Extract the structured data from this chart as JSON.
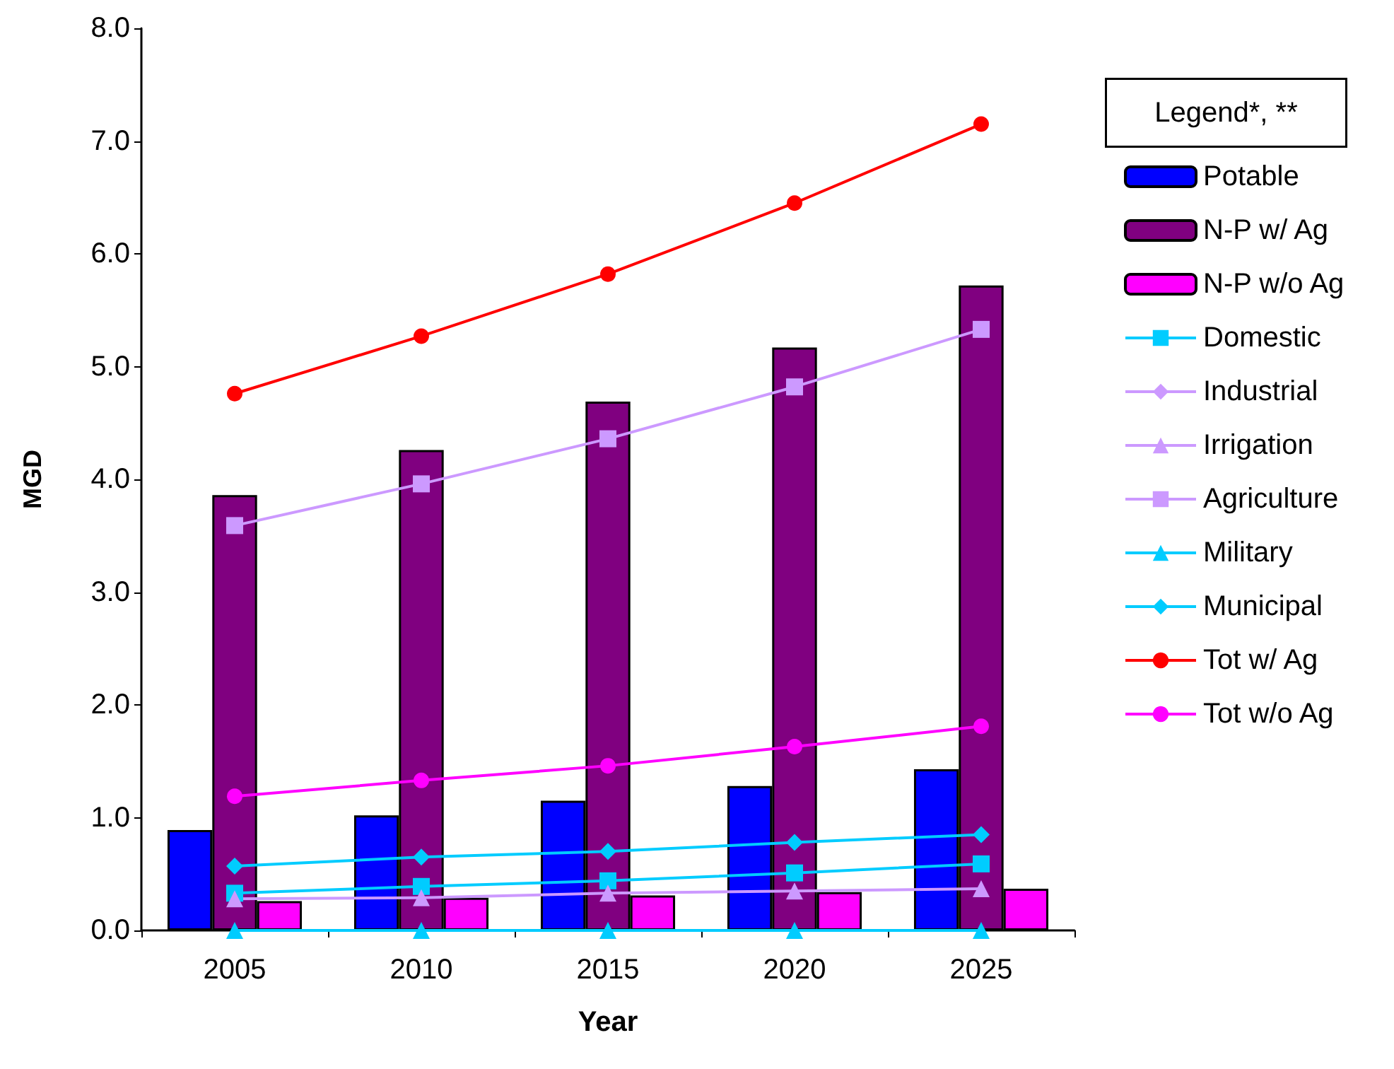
{
  "chart_data": {
    "type": "bar",
    "xlabel": "Year",
    "ylabel": "MGD",
    "legend_title": "Legend*, **",
    "categories": [
      "2005",
      "2010",
      "2015",
      "2020",
      "2025"
    ],
    "ylim": [
      0,
      8
    ],
    "yticks": [
      {
        "value": 0,
        "label": "0.0"
      },
      {
        "value": 1,
        "label": "1.0"
      },
      {
        "value": 2,
        "label": "2.0"
      },
      {
        "value": 3,
        "label": "3.0"
      },
      {
        "value": 4,
        "label": "4.0"
      },
      {
        "value": 5,
        "label": "5.0"
      },
      {
        "value": 6,
        "label": "6.0"
      },
      {
        "value": 7,
        "label": "7.0"
      },
      {
        "value": 8,
        "label": "8.0"
      }
    ],
    "grid": false,
    "legend": "right",
    "series": [
      {
        "name": "Potable",
        "color": "#0000ff",
        "values": [
          0.89,
          1.02,
          1.15,
          1.28,
          1.43
        ]
      },
      {
        "name": "N-P w/ Ag",
        "color": "#800080",
        "values": [
          3.86,
          4.26,
          4.69,
          5.17,
          5.72
        ]
      },
      {
        "name": "N-P w/o Ag",
        "color": "#ff00ff",
        "values": [
          0.26,
          0.29,
          0.31,
          0.34,
          0.37
        ]
      },
      {
        "name": "Domestic",
        "type": "line",
        "marker": "square",
        "color": "#00ccff",
        "values": [
          0.33,
          0.39,
          0.44,
          0.51,
          0.59
        ]
      },
      {
        "name": "Industrial",
        "type": "line",
        "marker": "diamond",
        "color": "#cc99ff",
        "values": [
          null,
          null,
          null,
          null,
          null
        ]
      },
      {
        "name": "Irrigation",
        "type": "line",
        "marker": "triangle",
        "color": "#cc99ff",
        "values": [
          0.28,
          0.29,
          0.33,
          0.35,
          0.37
        ]
      },
      {
        "name": "Agriculture",
        "type": "line",
        "marker": "square",
        "color": "#cc99ff",
        "values": [
          3.59,
          3.96,
          4.36,
          4.82,
          5.33
        ]
      },
      {
        "name": "Military",
        "type": "line",
        "marker": "triangle",
        "color": "#00ccff",
        "values": [
          0,
          0,
          0,
          0,
          0
        ]
      },
      {
        "name": "Municipal",
        "type": "line",
        "marker": "diamond",
        "color": "#00ccff",
        "values": [
          0.57,
          0.65,
          0.7,
          0.78,
          0.85
        ]
      },
      {
        "name": "Tot w/ Ag",
        "type": "line",
        "marker": "circle",
        "color": "#ff0000",
        "values": [
          4.76,
          5.27,
          5.82,
          6.45,
          7.15
        ]
      },
      {
        "name": "Tot w/o Ag",
        "type": "line",
        "marker": "circle",
        "color": "#ff00ff",
        "values": [
          1.19,
          1.33,
          1.46,
          1.63,
          1.81
        ]
      }
    ]
  }
}
